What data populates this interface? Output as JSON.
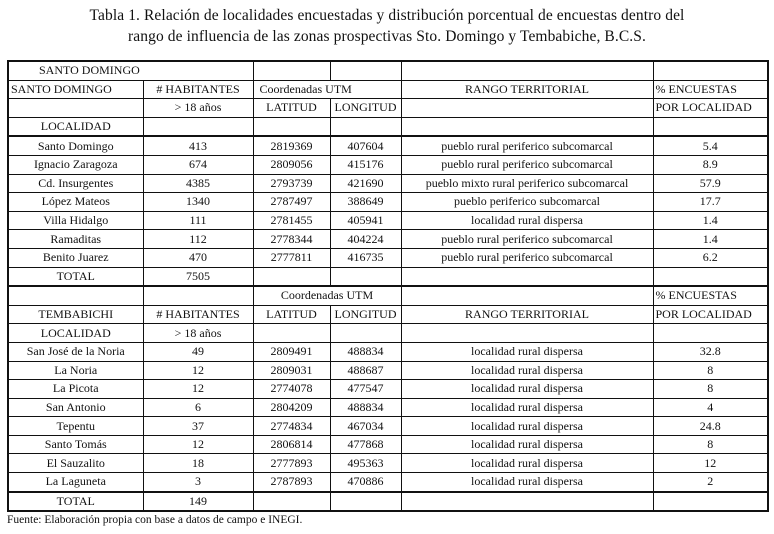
{
  "title": {
    "line1": "Tabla 1. Relación de localidades encuestadas y distribución porcentual de encuestas  dentro del",
    "line2": "rango de influencia de las zonas prospectivas Sto. Domingo y Tembabiche, B.C.S."
  },
  "santo_domingo": {
    "section_label": "SANTO DOMINGO",
    "headers": {
      "col1": "SANTO DOMINGO",
      "habitantes": "# HABITANTES",
      "coordenadas": "Coordenadas  UTM",
      "rango": "RANGO TERRITORIAL",
      "encuestas": "% ENCUESTAS",
      "mayores": "> 18 años",
      "latitud": "LATITUD",
      "longitud": "LONGITUD",
      "por_localidad": "POR LOCALIDAD",
      "localidad": "LOCALIDAD"
    },
    "rows": [
      {
        "localidad": "Santo Domingo",
        "habitantes": "413",
        "latitud": "2819369",
        "longitud": "407604",
        "rango": "pueblo rural periferico subcomarcal",
        "encuestas": "5.4"
      },
      {
        "localidad": "Ignacio Zaragoza",
        "habitantes": "674",
        "latitud": "2809056",
        "longitud": "415176",
        "rango": "pueblo rural periferico subcomarcal",
        "encuestas": "8.9"
      },
      {
        "localidad": "Cd. Insurgentes",
        "habitantes": "4385",
        "latitud": "2793739",
        "longitud": "421690",
        "rango": "pueblo  mixto rural periferico subcomarcal",
        "encuestas": "57.9"
      },
      {
        "localidad": "López Mateos",
        "habitantes": "1340",
        "latitud": "2787497",
        "longitud": "388649",
        "rango": "pueblo periferico subcomarcal",
        "encuestas": "17.7"
      },
      {
        "localidad": "Villa Hidalgo",
        "habitantes": "111",
        "latitud": "2781455",
        "longitud": "405941",
        "rango": "localidad rural dispersa",
        "encuestas": "1.4"
      },
      {
        "localidad": "Ramaditas",
        "habitantes": "112",
        "latitud": "2778344",
        "longitud": "404224",
        "rango": "pueblo rural periferico subcomarcal",
        "encuestas": "1.4"
      },
      {
        "localidad": "Benito Juarez",
        "habitantes": "470",
        "latitud": "2777811",
        "longitud": "416735",
        "rango": "pueblo rural periferico subcomarcal",
        "encuestas": "6.2"
      }
    ],
    "total_label": "TOTAL",
    "total": "7505"
  },
  "tembabichi": {
    "headers": {
      "coordenadas": "Coordenadas  UTM",
      "encuestas": "% ENCUESTAS",
      "col1": "TEMBABICHI",
      "habitantes": "# HABITANTES",
      "latitud": "LATITUD",
      "longitud": "LONGITUD",
      "rango": "RANGO TERRITORIAL",
      "por_localidad": "POR LOCALIDAD",
      "localidad": "LOCALIDAD",
      "mayores": "> 18 años"
    },
    "rows": [
      {
        "localidad": "San José de la Noria",
        "habitantes": "49",
        "latitud": "2809491",
        "longitud": "488834",
        "rango": "localidad  rural dispersa",
        "encuestas": "32.8"
      },
      {
        "localidad": "La Noria",
        "habitantes": "12",
        "latitud": "2809031",
        "longitud": "488687",
        "rango": "localidad rural dispersa",
        "encuestas": "8"
      },
      {
        "localidad": "La Picota",
        "habitantes": "12",
        "latitud": "2774078",
        "longitud": "477547",
        "rango": "localidad rural dispersa",
        "encuestas": "8"
      },
      {
        "localidad": "San Antonio",
        "habitantes": "6",
        "latitud": "2804209",
        "longitud": "488834",
        "rango": "localidad rural dispersa",
        "encuestas": "4"
      },
      {
        "localidad": "Tepentu",
        "habitantes": "37",
        "latitud": "2774834",
        "longitud": "467034",
        "rango": "localidad rural dispersa",
        "encuestas": "24.8"
      },
      {
        "localidad": "Santo Tomás",
        "habitantes": "12",
        "latitud": "2806814",
        "longitud": "477868",
        "rango": "localidad  rural dispersa",
        "encuestas": "8"
      },
      {
        "localidad": "El Sauzalito",
        "habitantes": "18",
        "latitud": "2777893",
        "longitud": "495363",
        "rango": "localidad rural dispersa",
        "encuestas": "12"
      },
      {
        "localidad": "La Laguneta",
        "habitantes": "3",
        "latitud": "2787893",
        "longitud": "470886",
        "rango": "localidad rural dispersa",
        "encuestas": "2"
      }
    ],
    "total_label": "TOTAL",
    "total": "149"
  },
  "source": "Fuente: Elaboración propia con base a datos de campo e INEGI."
}
